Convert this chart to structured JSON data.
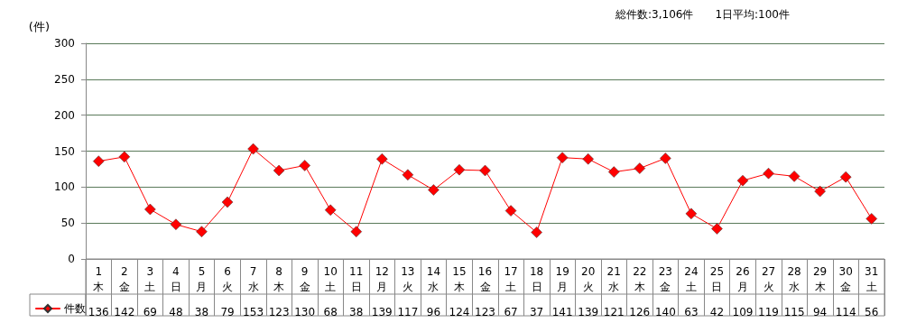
{
  "chart_data": {
    "type": "line",
    "ylabel": "(件)",
    "annotations": [
      "総件数:3,106件",
      "1日平均:100件"
    ],
    "categories": [
      "1\n木",
      "2\n金",
      "3\n土",
      "4\n日",
      "5\n月",
      "6\n火",
      "7\n水",
      "8\n木",
      "9\n金",
      "10\n土",
      "11\n日",
      "12\n月",
      "13\n火",
      "14\n水",
      "15\n木",
      "16\n金",
      "17\n土",
      "18\n日",
      "19\n月",
      "20\n火",
      "21\n水",
      "22\n木",
      "23\n金",
      "24\n土",
      "25\n日",
      "26\n月",
      "27\n火",
      "28\n水",
      "29\n木",
      "30\n金",
      "31\n土"
    ],
    "series": [
      {
        "name": "件数",
        "color": "#ff0000",
        "values": [
          136,
          142,
          69,
          48,
          38,
          79,
          153,
          123,
          130,
          68,
          38,
          139,
          117,
          96,
          124,
          123,
          67,
          37,
          141,
          139,
          121,
          126,
          140,
          63,
          42,
          109,
          119,
          115,
          94,
          114,
          56
        ]
      }
    ],
    "ylim": [
      0,
      300
    ],
    "yticks": [
      0,
      50,
      100,
      150,
      200,
      250,
      300
    ],
    "grid": "y",
    "legend": "bottom left",
    "marker": "diamond",
    "line_style": "solid",
    "data_labels": true
  }
}
